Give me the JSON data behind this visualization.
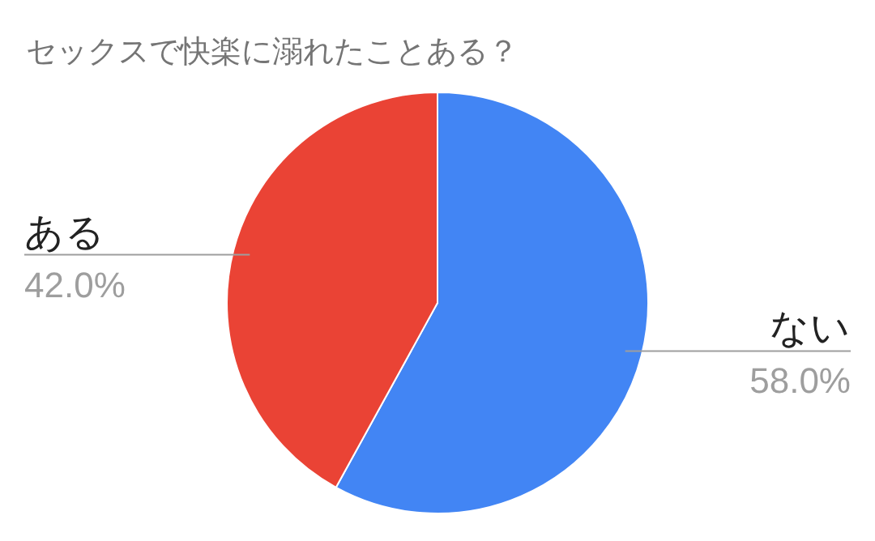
{
  "chart_data": {
    "type": "pie",
    "title": "セックスで快楽に溺れたことある？",
    "categories": [
      "ない",
      "ある"
    ],
    "values": [
      58.0,
      42.0
    ],
    "colors": [
      "#4285f4",
      "#ea4335"
    ],
    "value_labels": [
      "58.0%",
      "42.0%"
    ],
    "legend": false
  }
}
